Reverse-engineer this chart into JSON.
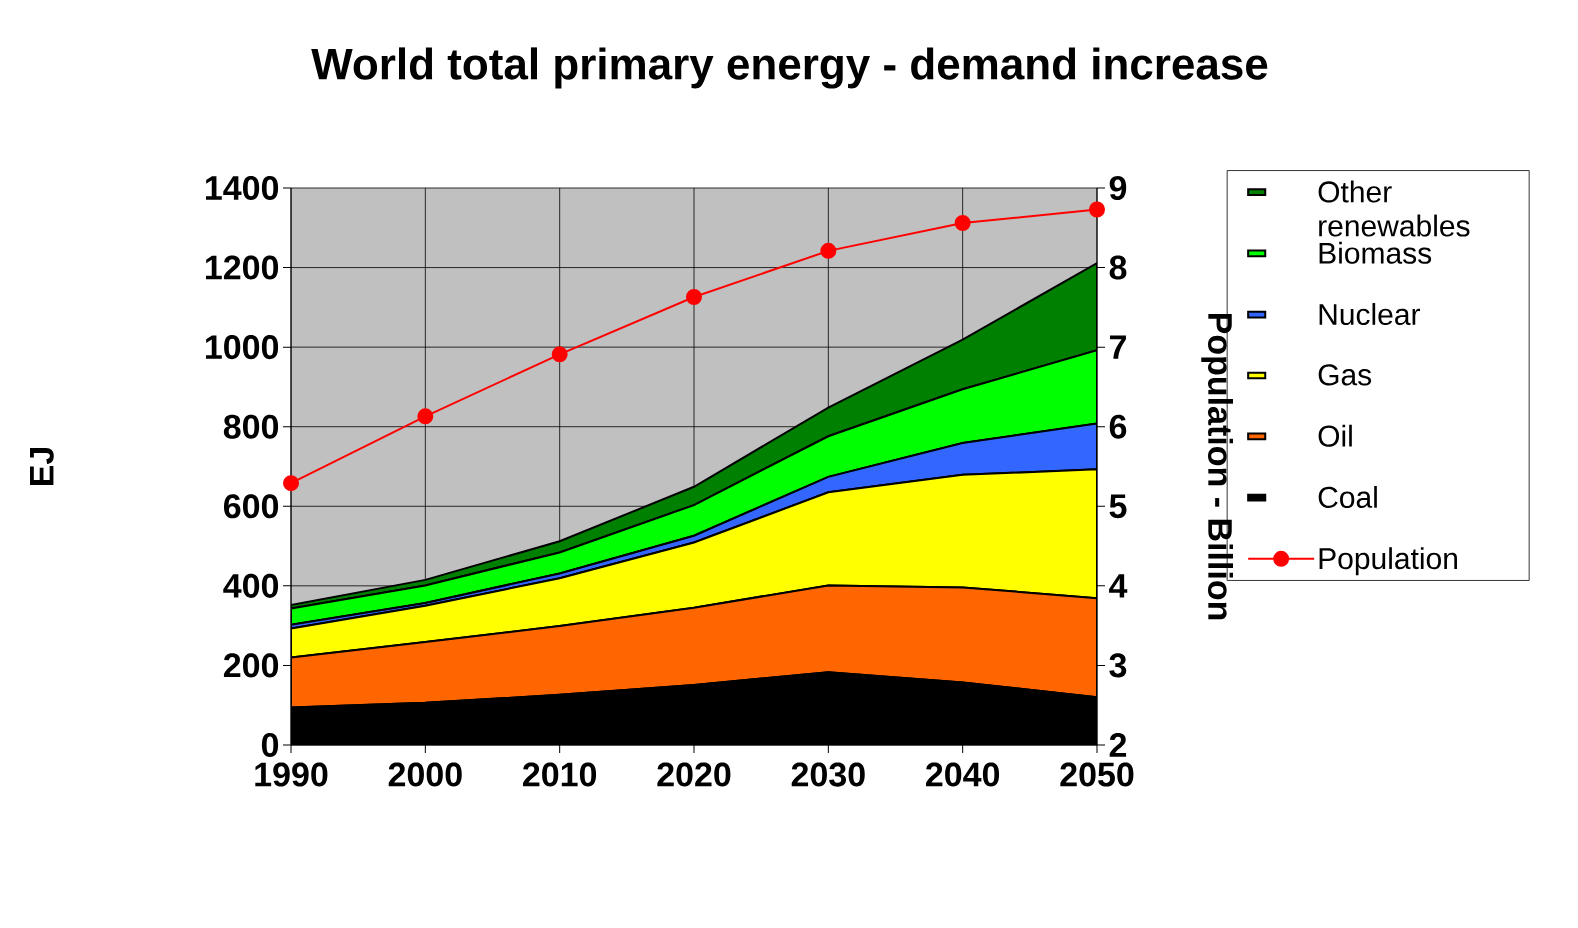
{
  "chart_data": {
    "type": "area",
    "title": "World total primary energy - demand increase",
    "ylabel": "EJ",
    "y2label": "Population - Billion",
    "x": [
      1990,
      2000,
      2010,
      2020,
      2030,
      2040,
      2050
    ],
    "xlim": [
      1990,
      2050
    ],
    "xticks": [
      1990,
      2000,
      2010,
      2020,
      2030,
      2040,
      2050
    ],
    "ylim": [
      0,
      1400
    ],
    "yticks": [
      0,
      200,
      400,
      600,
      800,
      1000,
      1200,
      1400
    ],
    "y2lim": [
      2,
      9
    ],
    "y2ticks": [
      2,
      3,
      4,
      5,
      6,
      7,
      8,
      9
    ],
    "stacked": true,
    "grid": true,
    "legend": "right",
    "series": [
      {
        "name": "Coal",
        "color": "#000000",
        "values": [
          94,
          106,
          126,
          151,
          183,
          157,
          120
        ]
      },
      {
        "name": "Oil",
        "color": "#ff6600",
        "values": [
          126,
          153,
          173,
          194,
          218,
          239,
          249
        ]
      },
      {
        "name": "Gas",
        "color": "#ffff00",
        "values": [
          73,
          91,
          120,
          164,
          234,
          283,
          324
        ]
      },
      {
        "name": "Nuclear",
        "color": "#3366ff",
        "values": [
          9,
          7,
          12,
          17,
          39,
          80,
          115
        ]
      },
      {
        "name": "Biomass",
        "color": "#00ff00",
        "values": [
          41,
          44,
          53,
          77,
          102,
          135,
          184
        ]
      },
      {
        "name": "Other renewables",
        "color": "#008000",
        "values": [
          9,
          14,
          28,
          46,
          72,
          125,
          219
        ]
      },
      {
        "name": "Population",
        "type": "line",
        "axis": "y2",
        "color": "#ff0000",
        "marker": "circle",
        "values": [
          5.29,
          6.13,
          6.91,
          7.63,
          8.21,
          8.56,
          8.73
        ]
      }
    ]
  }
}
